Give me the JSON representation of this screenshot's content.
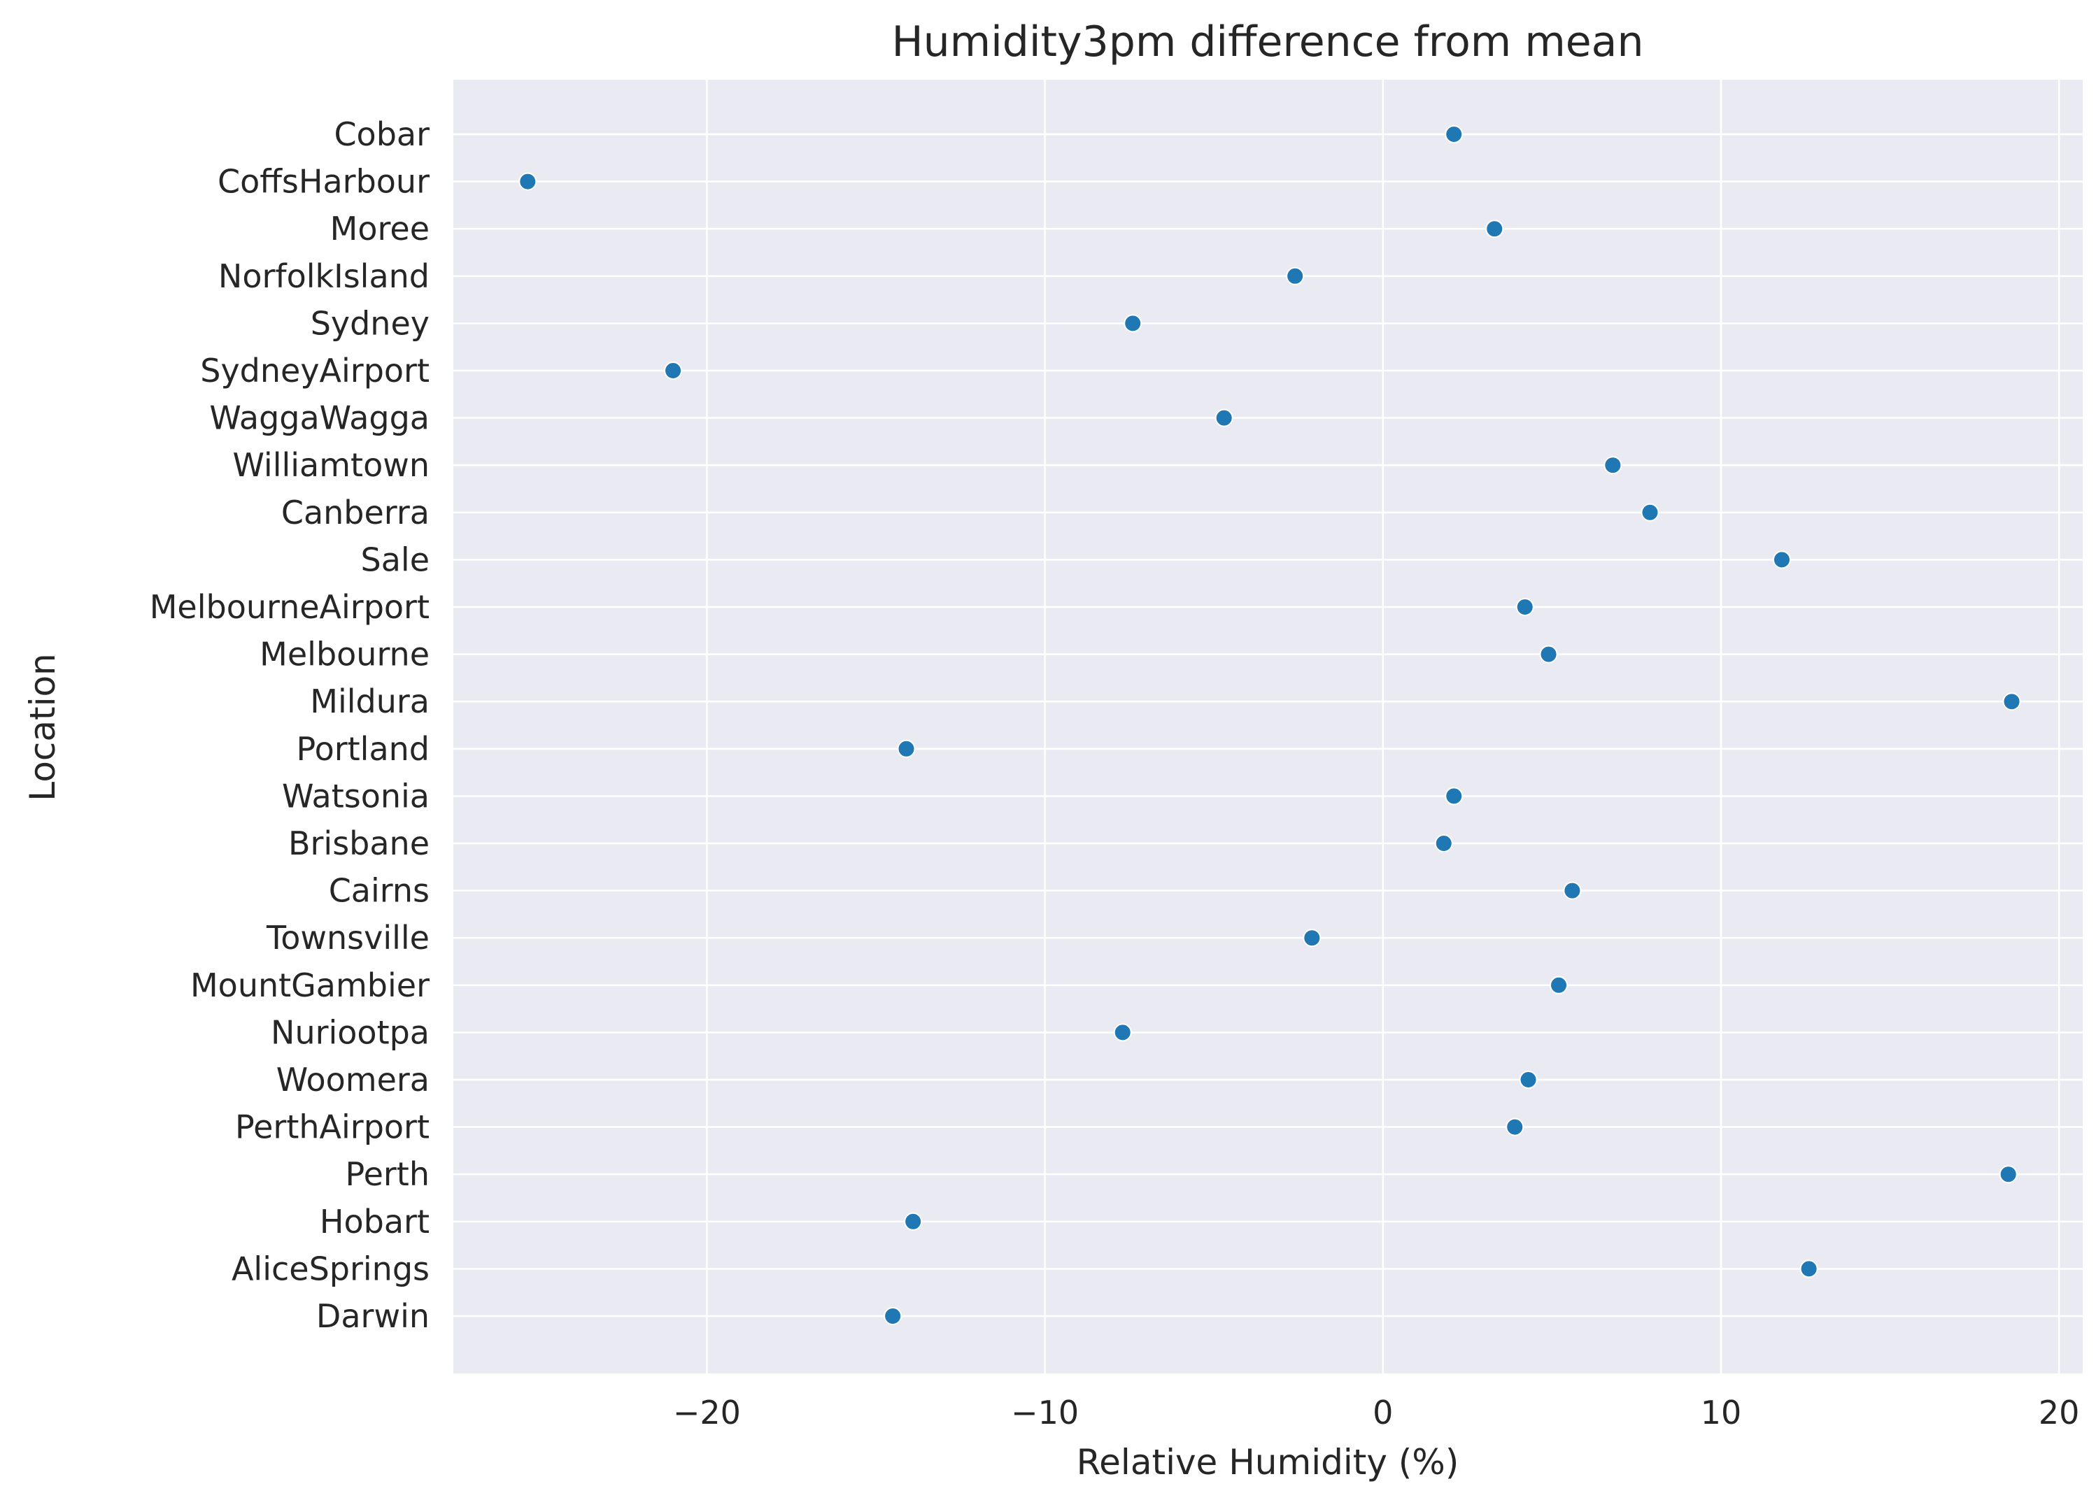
{
  "chart_data": {
    "type": "scatter",
    "title": "Humidity3pm difference from mean",
    "xlabel": "Relative Humidity (%)",
    "ylabel": "Location",
    "xlim": [
      -27.5,
      20.7
    ],
    "xticks": [
      -20,
      -10,
      0,
      10,
      20
    ],
    "xtick_labels": [
      "−20",
      "−10",
      "0",
      "10",
      "20"
    ],
    "grid": true,
    "background": "#eaeaf2",
    "point_color": "#1f77b4",
    "categories": [
      "Cobar",
      "CoffsHarbour",
      "Moree",
      "NorfolkIsland",
      "Sydney",
      "SydneyAirport",
      "WaggaWagga",
      "Williamtown",
      "Canberra",
      "Sale",
      "MelbourneAirport",
      "Melbourne",
      "Mildura",
      "Portland",
      "Watsonia",
      "Brisbane",
      "Cairns",
      "Townsville",
      "MountGambier",
      "Nuriootpa",
      "Woomera",
      "PerthAirport",
      "Perth",
      "Hobart",
      "AliceSprings",
      "Darwin"
    ],
    "values": [
      2.1,
      -25.3,
      3.3,
      -2.6,
      -7.4,
      -21.0,
      -4.7,
      6.8,
      7.9,
      11.8,
      4.2,
      4.9,
      18.6,
      -14.1,
      2.1,
      1.8,
      5.6,
      -2.1,
      5.2,
      -7.7,
      4.3,
      3.9,
      18.5,
      -13.9,
      12.6,
      -14.5
    ]
  }
}
